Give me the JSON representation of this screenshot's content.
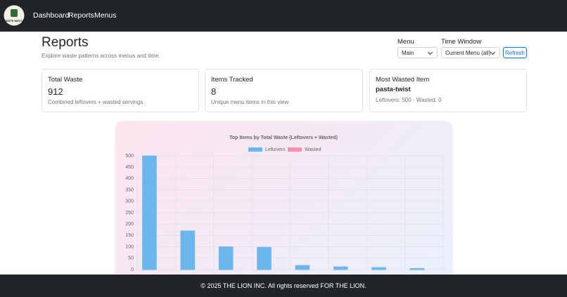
{
  "nav": {
    "logo_text": "WASTE WATCH",
    "links": [
      "Dashboard",
      "Reports",
      "Menus"
    ]
  },
  "header": {
    "title": "Reports",
    "subtitle": "Explore waste patterns across menus and time."
  },
  "filters": {
    "menu_label": "Menu",
    "menu_value": "Main",
    "window_label": "Time Window",
    "window_value": "Current Menu (all)",
    "refresh": "Refresh"
  },
  "cards": [
    {
      "title": "Total Waste",
      "value": "912",
      "note": "Combined leftovers + wasted servings"
    },
    {
      "title": "Items Tracked",
      "value": "8",
      "note": "Unique menu items in this view"
    },
    {
      "title": "Most Wasted Item",
      "value": "pasta-twist",
      "note": "Leftovers: 500 · Wasted: 0"
    }
  ],
  "chart_data": {
    "type": "bar",
    "title": "Top Items by Total Waste (Leftovers + Wasted)",
    "categories": [
      null,
      null,
      null,
      null,
      null,
      null,
      null,
      null
    ],
    "series": [
      {
        "name": "Leftovers",
        "color": "#6cb6ee",
        "values": [
          500,
          170,
          100,
          98,
          18,
          12,
          9,
          5
        ]
      },
      {
        "name": "Wasted",
        "color": "#ff8fa8",
        "values": [
          0,
          0,
          0,
          0,
          0,
          0,
          0,
          0
        ]
      }
    ],
    "ylim": [
      0,
      500
    ],
    "yticks": [
      0,
      50,
      100,
      150,
      200,
      250,
      300,
      350,
      400,
      450,
      500
    ],
    "grid": true
  },
  "footer": {
    "text": "© 2025 THE LION INC. All rights reserved FOR THE LION."
  }
}
